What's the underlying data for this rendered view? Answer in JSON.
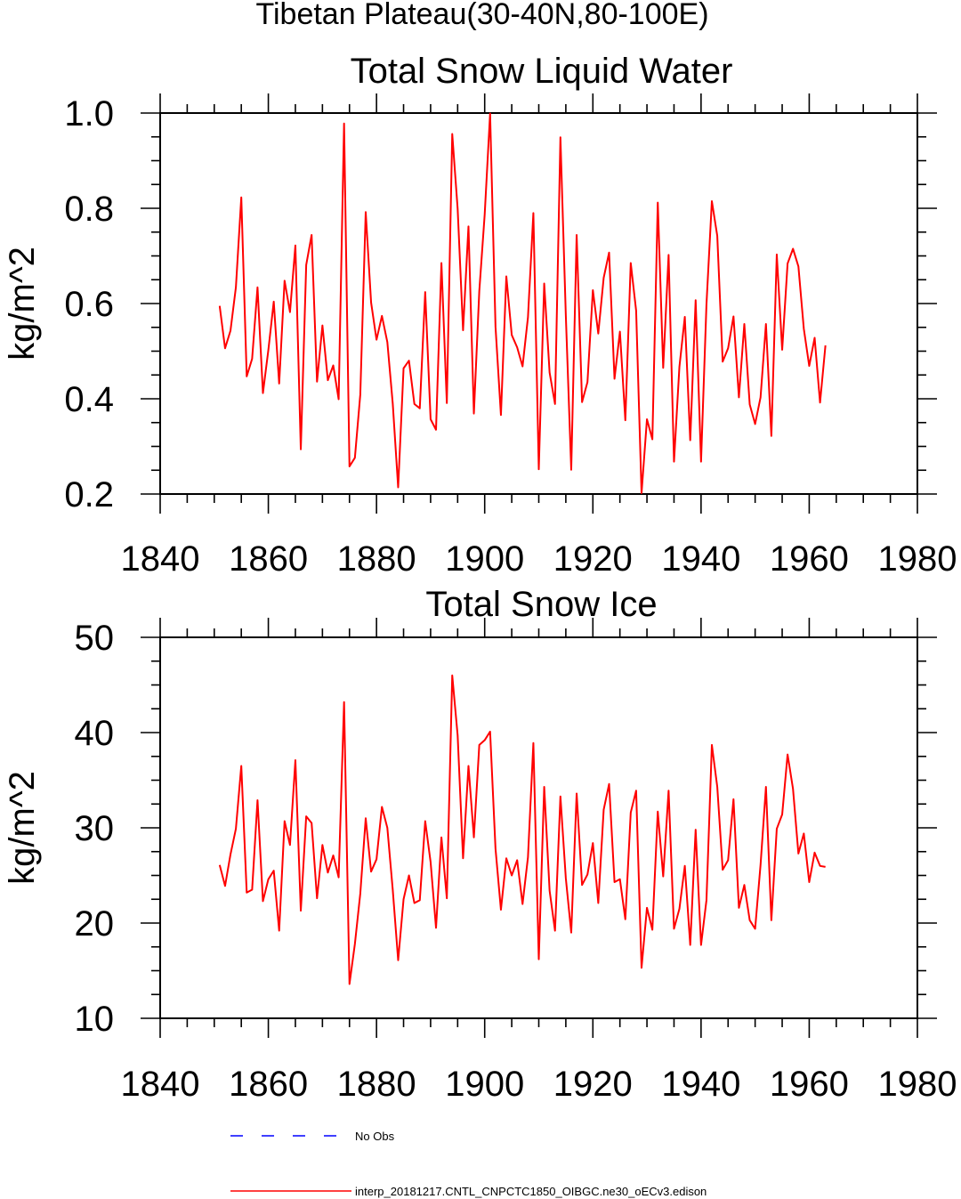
{
  "figure": {
    "suptitle": "Tibetan Plateau(30-40N,80-100E)"
  },
  "chart_data": [
    {
      "type": "line",
      "title": "Total Snow Liquid Water",
      "xlabel": "",
      "ylabel": "kg/m^2",
      "xlim": [
        1840,
        1980
      ],
      "ylim": [
        0.2,
        1.0
      ],
      "xticks": [
        "1840",
        "1860",
        "1880",
        "1900",
        "1920",
        "1940",
        "1960",
        "1980"
      ],
      "yticks": [
        "0.2",
        "0.4",
        "0.6",
        "0.8",
        "1.0"
      ],
      "x_start": 1851,
      "series": [
        {
          "name": "interp_20181217.CNTL_CNPCTC1850_OIBGC.ne30_oECv3.edison",
          "color": "#ff0000",
          "values": [
            0.595,
            0.506,
            0.543,
            0.634,
            0.823,
            0.447,
            0.484,
            0.634,
            0.412,
            0.502,
            0.604,
            0.432,
            0.648,
            0.582,
            0.722,
            0.294,
            0.681,
            0.744,
            0.436,
            0.554,
            0.439,
            0.47,
            0.399,
            0.978,
            0.258,
            0.276,
            0.409,
            0.792,
            0.602,
            0.524,
            0.574,
            0.519,
            0.39,
            0.214,
            0.464,
            0.48,
            0.389,
            0.38,
            0.624,
            0.357,
            0.335,
            0.685,
            0.391,
            0.956,
            0.799,
            0.544,
            0.762,
            0.369,
            0.626,
            0.787,
            0.999,
            0.551,
            0.366,
            0.657,
            0.534,
            0.508,
            0.468,
            0.571,
            0.79,
            0.252,
            0.642,
            0.455,
            0.389,
            0.949,
            0.575,
            0.251,
            0.744,
            0.393,
            0.435,
            0.628,
            0.537,
            0.654,
            0.707,
            0.442,
            0.541,
            0.355,
            0.685,
            0.585,
            0.202,
            0.357,
            0.315,
            0.812,
            0.465,
            0.702,
            0.268,
            0.467,
            0.572,
            0.313,
            0.607,
            0.268,
            0.598,
            0.815,
            0.742,
            0.478,
            0.506,
            0.573,
            0.403,
            0.557,
            0.388,
            0.347,
            0.403,
            0.557,
            0.322,
            0.703,
            0.503,
            0.684,
            0.715,
            0.678,
            0.547,
            0.469,
            0.528,
            0.392,
            0.512
          ]
        }
      ]
    },
    {
      "type": "line",
      "title": "Total Snow Ice",
      "xlabel": "",
      "ylabel": "kg/m^2",
      "xlim": [
        1840,
        1980
      ],
      "ylim": [
        10,
        50
      ],
      "xticks": [
        "1840",
        "1860",
        "1880",
        "1900",
        "1920",
        "1940",
        "1960",
        "1980"
      ],
      "yticks": [
        "10",
        "20",
        "30",
        "40",
        "50"
      ],
      "x_start": 1851,
      "series": [
        {
          "name": "interp_20181217.CNTL_CNPCTC1850_OIBGC.ne30_oECv3.edison",
          "color": "#ff0000",
          "values": [
            26.1,
            23.9,
            27.2,
            29.9,
            36.5,
            23.2,
            23.5,
            32.9,
            22.3,
            24.6,
            25.5,
            19.2,
            30.7,
            28.2,
            37.1,
            21.3,
            31.2,
            30.5,
            22.6,
            28.2,
            25.3,
            27.1,
            24.8,
            43.2,
            13.6,
            17.8,
            23.1,
            31.0,
            25.4,
            26.7,
            32.2,
            30.0,
            23.5,
            16.1,
            22.5,
            25.0,
            22.1,
            22.4,
            30.7,
            26.4,
            19.5,
            29.0,
            22.6,
            46.0,
            39.7,
            26.8,
            36.5,
            29.0,
            38.7,
            39.2,
            40.1,
            27.8,
            21.4,
            26.8,
            25.0,
            26.6,
            22.0,
            26.9,
            38.9,
            16.2,
            34.3,
            23.4,
            19.2,
            33.3,
            24.7,
            19.0,
            33.6,
            24.0,
            25.1,
            28.4,
            22.1,
            31.9,
            34.6,
            24.3,
            24.6,
            20.4,
            31.6,
            33.9,
            15.3,
            21.6,
            19.3,
            31.7,
            24.9,
            33.9,
            19.4,
            21.5,
            26.0,
            17.7,
            29.8,
            17.7,
            22.4,
            38.7,
            34.3,
            25.6,
            26.6,
            33.0,
            21.6,
            24.0,
            20.3,
            19.4,
            26.1,
            34.3,
            20.3,
            29.9,
            31.4,
            37.7,
            34.1,
            27.3,
            29.4,
            24.3,
            27.4,
            26.0,
            25.9
          ]
        }
      ]
    }
  ],
  "legend": {
    "entries": [
      {
        "label": "No Obs",
        "color": "#0000ff",
        "dash": true
      },
      {
        "label": "interp_20181217.CNTL_CNPCTC1850_OIBGC.ne30_oECv3.edison",
        "color": "#ff0000",
        "dash": false
      }
    ]
  }
}
